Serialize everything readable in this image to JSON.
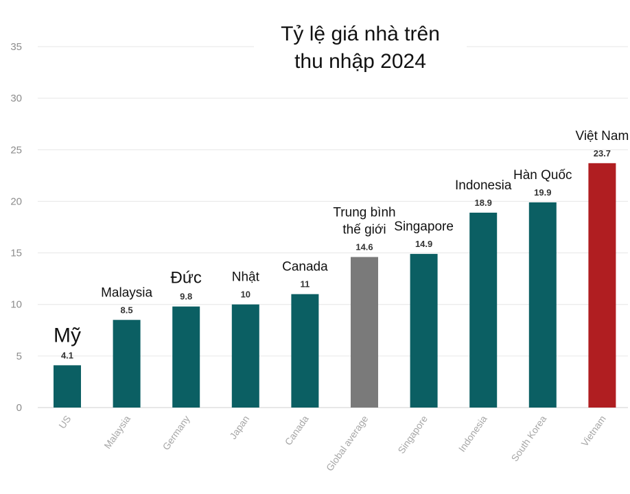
{
  "chart_data": {
    "type": "bar",
    "title": [
      "Tỷ lệ giá nhà trên",
      "thu nhập 2024"
    ],
    "xlabel": "",
    "ylabel": "",
    "ylim": [
      0,
      35
    ],
    "yticks": [
      0,
      5,
      10,
      15,
      20,
      25,
      30,
      35
    ],
    "grid": true,
    "categories": [
      "US",
      "Malaysia",
      "Germany",
      "Japan",
      "Canada",
      "Global average",
      "Singapore",
      "Indonesia",
      "South Korea",
      "Vietnam"
    ],
    "values": [
      4.1,
      8.5,
      9.8,
      10,
      11,
      14.6,
      14.9,
      18.9,
      19.9,
      23.7
    ],
    "value_labels": [
      "4.1",
      "8.5",
      "9.8",
      "10",
      "11",
      "14.6",
      "14.9",
      "18.9",
      "19.9",
      "23.7"
    ],
    "vietnamese_labels": [
      [
        "Mỹ"
      ],
      [
        "Malaysia"
      ],
      [
        "Đức"
      ],
      [
        "Nhật"
      ],
      [
        "Canada"
      ],
      [
        "Trung bình",
        "thế giới"
      ],
      [
        "Singapore"
      ],
      [
        "Indonesia"
      ],
      [
        "Hàn Quốc"
      ],
      [
        "Việt Nam"
      ]
    ],
    "bar_colors": [
      "#0b5f63",
      "#0b5f63",
      "#0b5f63",
      "#0b5f63",
      "#0b5f63",
      "#7a7a7a",
      "#0b5f63",
      "#0b5f63",
      "#0b5f63",
      "#b01e21"
    ]
  }
}
